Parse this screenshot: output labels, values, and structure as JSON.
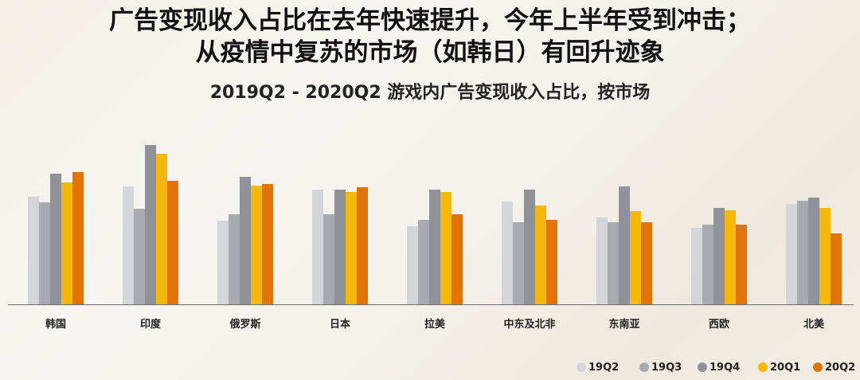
{
  "titles": {
    "line1": "广告变现收入占比在去年快速提升，今年上半年受到冲击；",
    "line2": "从疫情中复苏的市场（如韩日）有回升迹象",
    "subtitle": "2019Q2 - 2020Q2 游戏内广告变现收入占比，按市场"
  },
  "colors": {
    "19Q2": "#d3d5d9",
    "19Q3": "#a7aaaf",
    "19Q4": "#8f9296",
    "20Q1": "#f6b80d",
    "20Q2": "#e07408"
  },
  "chart_data": {
    "type": "bar",
    "title": "2019Q2 - 2020Q2 游戏内广告变现收入占比，按市场",
    "xlabel": "",
    "ylabel": "",
    "grid": false,
    "legend_position": "bottom-right",
    "note": "No y-axis shown; values are relative bar heights in pixels above baseline",
    "categories": [
      "韩国",
      "印度",
      "俄罗斯",
      "日本",
      "拉美",
      "中东及北非",
      "东南亚",
      "西欧",
      "北美"
    ],
    "series": [
      {
        "name": "19Q2",
        "values": [
          135,
          148,
          105,
          144,
          98,
          129,
          109,
          96,
          126
        ]
      },
      {
        "name": "19Q3",
        "values": [
          128,
          120,
          113,
          113,
          106,
          103,
          103,
          100,
          130
        ]
      },
      {
        "name": "19Q4",
        "values": [
          164,
          200,
          160,
          144,
          144,
          144,
          148,
          121,
          134
        ]
      },
      {
        "name": "20Q1",
        "values": [
          153,
          189,
          149,
          141,
          141,
          124,
          117,
          118,
          121
        ]
      },
      {
        "name": "20Q2",
        "values": [
          166,
          155,
          151,
          147,
          113,
          106,
          103,
          100,
          89
        ]
      }
    ]
  },
  "legend": [
    "19Q2",
    "19Q3",
    "19Q4",
    "20Q1",
    "20Q2"
  ]
}
